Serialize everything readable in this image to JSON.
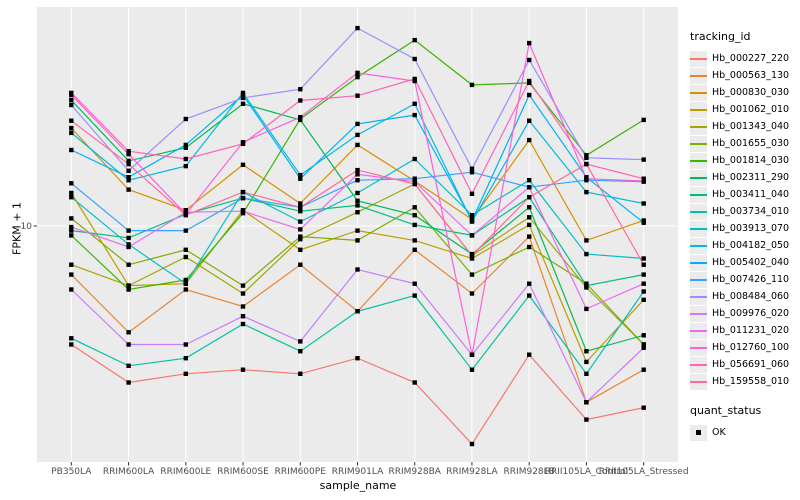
{
  "chart_data": {
    "type": "line",
    "title": "",
    "xlabel": "sample_name",
    "ylabel": "FPKM + 1",
    "y_scale": "log10",
    "y_ticks": [
      10
    ],
    "y_tick_labels": [
      "10"
    ],
    "ylim": [
      1.3,
      70
    ],
    "grid": "major",
    "legend_position": "right",
    "point_shape": "black-square",
    "categories": [
      "PB350LA",
      "RRIM600LA",
      "RRIM600LE",
      "RRIM600SE",
      "RRIM600PE",
      "RRIM901LA",
      "RRIM928BA",
      "RRIM928LA",
      "RRIM928LB",
      "RRII105LA_Control",
      "RRII105LA_Stressed"
    ],
    "series": [
      {
        "name": "Hb_000227_220",
        "color": "#F8766D",
        "values": [
          3.5,
          2.5,
          2.7,
          2.8,
          2.7,
          3.1,
          2.5,
          1.45,
          3.2,
          1.8,
          2.0
        ]
      },
      {
        "name": "Hb_000563_130",
        "color": "#EA8331",
        "values": [
          6.5,
          3.9,
          5.7,
          4.9,
          7.1,
          4.7,
          8.1,
          5.5,
          9.1,
          2.1,
          2.8
        ]
      },
      {
        "name": "Hb_000830_030",
        "color": "#D89000",
        "values": [
          23.8,
          13.8,
          11.5,
          17.2,
          12.2,
          20.5,
          14.9,
          10.6,
          21.4,
          8.8,
          10.5
        ]
      },
      {
        "name": "Hb_001062_010",
        "color": "#C09B00",
        "values": [
          13.4,
          5.9,
          6.0,
          11.5,
          8.1,
          9.6,
          8.8,
          7.5,
          10.1,
          3.0,
          5.2
        ]
      },
      {
        "name": "Hb_001343_040",
        "color": "#A3A500",
        "values": [
          7.1,
          5.9,
          7.6,
          5.5,
          8.9,
          11.3,
          14.5,
          7.7,
          10.8,
          5.8,
          3.5
        ]
      },
      {
        "name": "Hb_001655_030",
        "color": "#7CAE00",
        "values": [
          10.7,
          7.1,
          8.1,
          5.9,
          9.1,
          8.8,
          11.8,
          6.5,
          8.3,
          6.0,
          3.5
        ]
      },
      {
        "name": "Hb_001814_030",
        "color": "#39B600",
        "values": [
          9.2,
          5.7,
          6.2,
          11.2,
          25.8,
          37.4,
          51.9,
          34.9,
          35.5,
          18.7,
          25.6
        ]
      },
      {
        "name": "Hb_002311_290",
        "color": "#00BB4E",
        "values": [
          30.5,
          17.8,
          20.0,
          29.5,
          25.6,
          12.5,
          11.0,
          7.8,
          11.8,
          3.3,
          3.8
        ]
      },
      {
        "name": "Hb_003411_040",
        "color": "#00BF7D",
        "values": [
          9.6,
          9.0,
          11.1,
          12.8,
          11.4,
          12.0,
          10.1,
          9.2,
          12.9,
          5.9,
          6.5
        ]
      },
      {
        "name": "Hb_003734_010",
        "color": "#00C1A3",
        "values": [
          3.7,
          2.9,
          3.1,
          4.2,
          3.3,
          4.7,
          5.4,
          2.8,
          5.4,
          2.7,
          5.6
        ]
      },
      {
        "name": "Hb_003913_070",
        "color": "#00BFC4",
        "values": [
          12.9,
          8.5,
          6.0,
          13.5,
          10.4,
          13.4,
          18.1,
          11.0,
          15.0,
          7.8,
          7.5
        ]
      },
      {
        "name": "Hb_004182_050",
        "color": "#00BAE0",
        "values": [
          22.8,
          15.0,
          17.0,
          32.5,
          15.7,
          22.4,
          29.5,
          10.4,
          25.4,
          13.5,
          12.2
        ]
      },
      {
        "name": "Hb_005402_040",
        "color": "#00B0F6",
        "values": [
          19.6,
          15.4,
          20.5,
          31.9,
          15.2,
          24.7,
          26.7,
          10.5,
          31.9,
          15.4,
          10.3
        ]
      },
      {
        "name": "Hb_007426_110",
        "color": "#35A2FF",
        "values": [
          14.6,
          9.6,
          9.6,
          12.8,
          11.8,
          15.0,
          15.2,
          16.1,
          14.1,
          15.0,
          14.8
        ]
      },
      {
        "name": "Hb_008484_060",
        "color": "#9590FF",
        "values": [
          29.2,
          16.3,
          25.8,
          31.1,
          33.6,
          57.7,
          43.9,
          16.6,
          43.5,
          18.3,
          18.0
        ]
      },
      {
        "name": "Hb_009976_020",
        "color": "#C77CFF",
        "values": [
          5.7,
          3.5,
          3.5,
          4.5,
          3.6,
          6.8,
          6.0,
          3.2,
          6.0,
          2.1,
          3.4
        ]
      },
      {
        "name": "Hb_011231_020",
        "color": "#E76BF3",
        "values": [
          9.9,
          8.3,
          11.3,
          11.4,
          9.7,
          15.8,
          14.8,
          9.2,
          14.1,
          4.8,
          6.0
        ]
      },
      {
        "name": "Hb_012760_100",
        "color": "#FA62DB",
        "values": [
          31.9,
          18.9,
          11.1,
          21.0,
          26.2,
          38.8,
          36.1,
          3.2,
          50.5,
          15.2,
          14.9
        ]
      },
      {
        "name": "Hb_056691_060",
        "color": "#FF62BC",
        "values": [
          32.5,
          19.4,
          18.1,
          20.7,
          30.4,
          31.7,
          36.8,
          13.3,
          36.1,
          17.3,
          15.2
        ]
      },
      {
        "name": "Hb_159558_010",
        "color": "#FF6A98",
        "values": [
          25.4,
          17.3,
          11.0,
          13.5,
          11.8,
          16.4,
          14.5,
          7.7,
          12.9,
          17.3,
          7.1
        ]
      }
    ]
  },
  "legend": {
    "tracking_title": "tracking_id",
    "quant_title": "quant_status",
    "quant_ok_label": "OK"
  },
  "colors": {
    "panel_bg": "#EBEBEB",
    "gridline": "#FFFFFF",
    "point": "#000000",
    "tick_text": "#4D4D4D",
    "legend_key_bg": "#EBEBEB"
  }
}
